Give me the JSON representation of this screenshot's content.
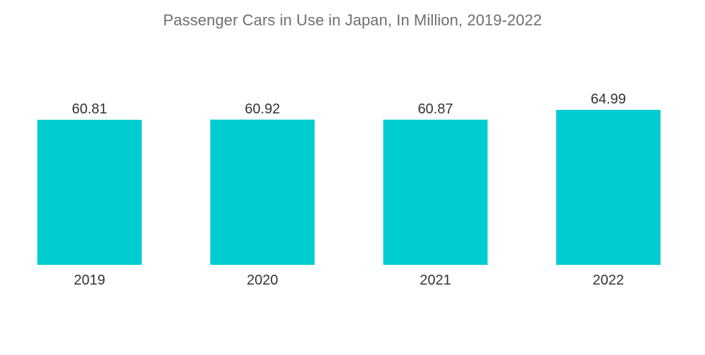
{
  "chart_data": {
    "type": "bar",
    "title": "Passenger Cars in Use in Japan, In Million, 2019-2022",
    "categories": [
      "2019",
      "2020",
      "2021",
      "2022"
    ],
    "values": [
      60.81,
      60.92,
      60.87,
      64.99
    ],
    "value_labels": [
      "60.81",
      "60.92",
      "60.87",
      "64.99"
    ],
    "xlabel": "",
    "ylabel": "",
    "grid": false,
    "legend": "none",
    "bar_color": "#00cdd0"
  }
}
